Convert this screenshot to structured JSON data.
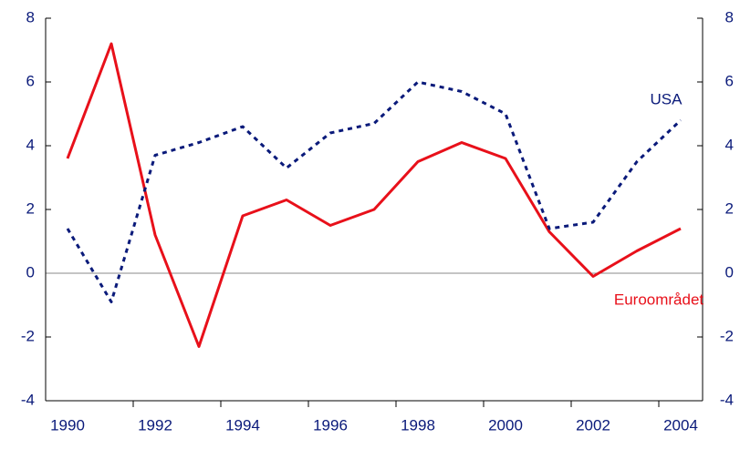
{
  "chart_data": {
    "type": "line",
    "categories": [
      "1990",
      null,
      "1992",
      null,
      "1994",
      null,
      "1996",
      null,
      "1998",
      null,
      "2000",
      null,
      "2002",
      null,
      "2004"
    ],
    "series": [
      {
        "name": "Euroområdet",
        "color": "#e8101a",
        "dash": false,
        "values": [
          3.6,
          7.2,
          1.2,
          -2.3,
          1.8,
          2.3,
          1.5,
          2.0,
          3.5,
          4.1,
          3.6,
          1.3,
          -0.1,
          0.7,
          1.4
        ]
      },
      {
        "name": "USA",
        "color": "#0a1a7a",
        "dash": true,
        "values": [
          1.4,
          -0.9,
          3.7,
          4.1,
          4.6,
          3.3,
          4.4,
          4.7,
          6.0,
          5.7,
          5.0,
          1.4,
          1.6,
          3.5,
          4.8
        ]
      }
    ],
    "ylim": [
      -4,
      8
    ],
    "yticks": [
      -4,
      -2,
      0,
      2,
      4,
      6,
      8
    ],
    "y2lim": [
      -4,
      8
    ],
    "y2ticks": [
      -4,
      -2,
      0,
      2,
      4,
      6,
      8
    ]
  }
}
